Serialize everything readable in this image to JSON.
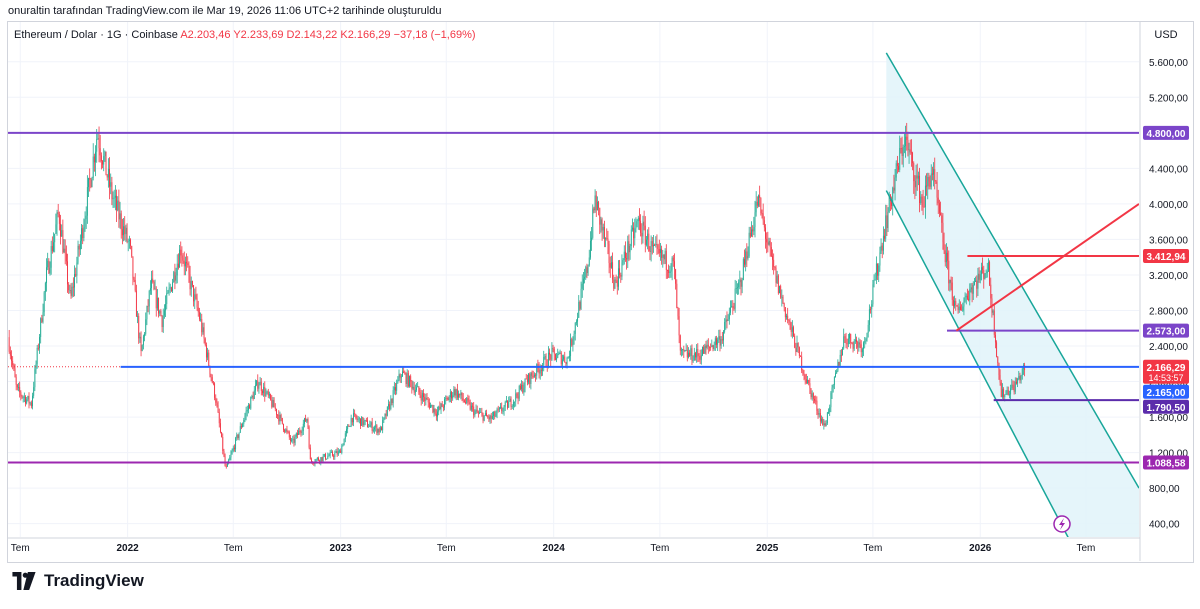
{
  "caption": "onuraltin tarafından TradingView.com ile Mar 19, 2026 11:06 UTC+2 tarihinde oluşturuldu",
  "legend": {
    "symbol": "Ethereum / Dolar · 1G · Coinbase",
    "ohlc": "A2.203,46  Y2.233,69  D2.143,22  K2.166,29  −37,18 (−1,69%)"
  },
  "currency": "USD",
  "brand": "TradingView",
  "icons": [
    "tradingview-logo-icon",
    "lightning-icon"
  ],
  "colors": {
    "up": "#22ab94",
    "down": "#f23645",
    "purple": "#7b45c9",
    "blue": "#2962ff",
    "red": "#f23645",
    "channel": "#18a69a",
    "grid": "#f0f3fa"
  },
  "chart_data": {
    "type": "candlestick",
    "title": "Ethereum / Dolar · 1G · Coinbase",
    "price_ticks": [
      400,
      800,
      1200,
      1600,
      2000,
      2400,
      2800,
      3200,
      3600,
      4000,
      4400,
      4800,
      5200,
      5600
    ],
    "price_tick_labels": [
      "400,00",
      "800,00",
      "1.200,00",
      "1.600,00",
      "2.000,00",
      "2.400,00",
      "2.800,00",
      "3.200,00",
      "3.600,00",
      "4.000,00",
      "4.400,00",
      "4.800,00",
      "5.200,00",
      "5.600,00"
    ],
    "ylim": [
      250,
      5800
    ],
    "time_labels": [
      "Tem",
      "2022",
      "Tem",
      "2023",
      "Tem",
      "2024",
      "Tem",
      "2025",
      "Tem",
      "2026",
      "Tem"
    ],
    "xlim": [
      "2021-06-10",
      "2026-09-30"
    ],
    "series": [
      {
        "name": "ETH/USD",
        "close_path": [
          [
            "2021-06-10",
            2500
          ],
          [
            "2021-06-25",
            1900
          ],
          [
            "2021-07-20",
            1750
          ],
          [
            "2021-08-15",
            3200
          ],
          [
            "2021-09-05",
            3900
          ],
          [
            "2021-09-25",
            2900
          ],
          [
            "2021-10-20",
            3900
          ],
          [
            "2021-11-10",
            4800
          ],
          [
            "2021-12-05",
            4100
          ],
          [
            "2022-01-05",
            3500
          ],
          [
            "2022-01-24",
            2300
          ],
          [
            "2022-02-10",
            3100
          ],
          [
            "2022-03-01",
            2700
          ],
          [
            "2022-04-02",
            3500
          ],
          [
            "2022-05-05",
            2700
          ],
          [
            "2022-06-01",
            1800
          ],
          [
            "2022-06-18",
            1000
          ],
          [
            "2022-07-20",
            1600
          ],
          [
            "2022-08-13",
            2000
          ],
          [
            "2022-09-10",
            1700
          ],
          [
            "2022-10-10",
            1300
          ],
          [
            "2022-11-05",
            1600
          ],
          [
            "2022-11-10",
            1100
          ],
          [
            "2022-12-30",
            1200
          ],
          [
            "2023-01-20",
            1600
          ],
          [
            "2023-03-10",
            1450
          ],
          [
            "2023-04-15",
            2100
          ],
          [
            "2023-06-15",
            1650
          ],
          [
            "2023-07-15",
            1900
          ],
          [
            "2023-08-20",
            1650
          ],
          [
            "2023-09-15",
            1580
          ],
          [
            "2023-10-25",
            1800
          ],
          [
            "2023-11-15",
            2000
          ],
          [
            "2023-12-28",
            2300
          ],
          [
            "2024-01-25",
            2250
          ],
          [
            "2024-02-28",
            3300
          ],
          [
            "2024-03-12",
            4050
          ],
          [
            "2024-04-15",
            3100
          ],
          [
            "2024-05-25",
            3800
          ],
          [
            "2024-06-20",
            3450
          ],
          [
            "2024-07-25",
            3300
          ],
          [
            "2024-08-05",
            2300
          ],
          [
            "2024-09-06",
            2300
          ],
          [
            "2024-10-15",
            2500
          ],
          [
            "2024-11-15",
            3100
          ],
          [
            "2024-12-16",
            4050
          ],
          [
            "2025-01-10",
            3300
          ],
          [
            "2025-02-05",
            2700
          ],
          [
            "2025-03-10",
            2000
          ],
          [
            "2025-04-09",
            1480
          ],
          [
            "2025-05-13",
            2500
          ],
          [
            "2025-06-15",
            2400
          ],
          [
            "2025-07-20",
            3700
          ],
          [
            "2025-08-24",
            4750
          ],
          [
            "2025-09-25",
            4000
          ],
          [
            "2025-10-10",
            4400
          ],
          [
            "2025-11-05",
            3300
          ],
          [
            "2025-11-21",
            2750
          ],
          [
            "2025-12-15",
            3050
          ],
          [
            "2026-01-14",
            3300
          ],
          [
            "2026-02-06",
            1850
          ],
          [
            "2026-03-01",
            1950
          ],
          [
            "2026-03-19",
            2166.29
          ]
        ]
      }
    ],
    "horizontal_levels": [
      {
        "value": 4800,
        "label": "4.800,00",
        "color": "#7b45c9",
        "from": "2021-06-10"
      },
      {
        "value": 3412.94,
        "label": "3.412,94",
        "color": "#f23645",
        "from": "2025-12-10"
      },
      {
        "value": 2573,
        "label": "2.573,00",
        "color": "#7b45c9",
        "from": "2025-11-05"
      },
      {
        "value": 2166.29,
        "label": "2.166,29",
        "sublabel": "14:53:57",
        "color": "#f23645",
        "from": "2021-12-20",
        "dotted": true
      },
      {
        "value": 2165,
        "label": "2.165,00",
        "color": "#2962ff",
        "from": "2021-12-20"
      },
      {
        "value": 1790.5,
        "label": "1.790,50",
        "color": "#5b2cab",
        "from": "2026-01-24"
      },
      {
        "value": 1088.58,
        "label": "1.088,58",
        "color": "#9c27b0",
        "from": "2021-06-10"
      }
    ],
    "trend_line": {
      "from": [
        "2025-11-21",
        2573
      ],
      "to": [
        "2026-09-30",
        4000
      ],
      "color": "#f23645"
    },
    "channel": {
      "upper": [
        [
          "2025-07-24",
          5700
        ],
        [
          "2026-09-30",
          800
        ]
      ],
      "lower": [
        [
          "2025-07-24",
          4150
        ],
        [
          "2026-06-01",
          240
        ]
      ],
      "fill": "#e0f3f9",
      "color": "#18a69a"
    }
  }
}
